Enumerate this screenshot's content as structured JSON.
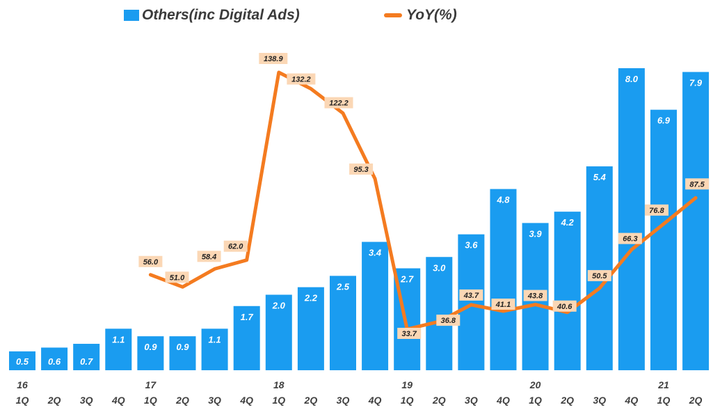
{
  "chart_data": {
    "type": "bar",
    "categories": [
      "1Q",
      "2Q",
      "3Q",
      "4Q",
      "1Q",
      "2Q",
      "3Q",
      "4Q",
      "1Q",
      "2Q",
      "3Q",
      "4Q",
      "1Q",
      "2Q",
      "3Q",
      "4Q",
      "1Q",
      "2Q",
      "3Q",
      "4Q",
      "1Q",
      "2Q"
    ],
    "year_labels": [
      "16",
      "",
      "",
      "",
      "17",
      "",
      "",
      "",
      "18",
      "",
      "",
      "",
      "19",
      "",
      "",
      "",
      "20",
      "",
      "",
      "",
      "21",
      ""
    ],
    "series": [
      {
        "name": "Others(inc Digital Ads)",
        "type": "bar",
        "color": "#1a9cf0",
        "values": [
          0.5,
          0.6,
          0.7,
          1.1,
          0.9,
          0.9,
          1.1,
          1.7,
          2.0,
          2.2,
          2.5,
          3.4,
          2.7,
          3.0,
          3.6,
          4.8,
          3.9,
          4.2,
          5.4,
          8.0,
          6.9,
          7.9
        ],
        "labels": [
          "0.5",
          "0.6",
          "0.7",
          "1.1",
          "0.9",
          "0.9",
          "1.1",
          "1.7",
          "2.0",
          "2.2",
          "2.5",
          "3.4",
          "2.7",
          "3.0",
          "3.6",
          "4.8",
          "3.9",
          "4.2",
          "5.4",
          "8.0",
          "6.9",
          "7.9"
        ]
      },
      {
        "name": "YoY(%)",
        "type": "line",
        "color": "#f47b20",
        "label_bg": "#fbd7b5",
        "values": [
          null,
          null,
          null,
          null,
          56.0,
          51.0,
          58.4,
          62.0,
          138.9,
          132.2,
          122.2,
          95.3,
          33.7,
          36.8,
          43.7,
          41.1,
          43.8,
          40.6,
          50.5,
          66.3,
          76.8,
          87.5
        ],
        "labels": [
          "",
          "",
          "",
          "",
          "56.0",
          "51.0",
          "58.4",
          "62.0",
          "138.9",
          "132.2",
          "122.2",
          "95.3",
          "33.7",
          "36.8",
          "43.7",
          "41.1",
          "43.8",
          "40.6",
          "50.5",
          "66.3",
          "76.8",
          "87.5"
        ]
      }
    ],
    "bar_axis_range": [
      0,
      8.4
    ],
    "line_axis_range": [
      -50,
      145
    ],
    "grid": false,
    "legend_position": "top"
  }
}
